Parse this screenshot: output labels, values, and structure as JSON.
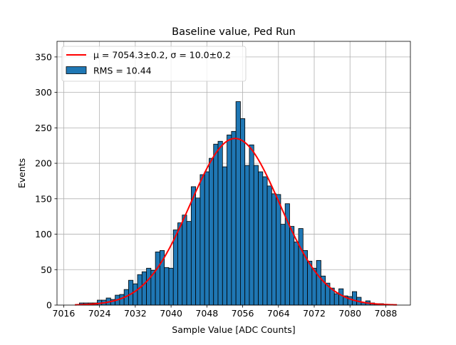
{
  "chart_data": {
    "type": "bar",
    "title": "Baseline value, Ped Run",
    "xlabel": "Sample Value [ADC Counts]",
    "ylabel": "Events",
    "xlim": [
      7014.5,
      7093.5
    ],
    "ylim": [
      0,
      372
    ],
    "xticks": [
      7016,
      7024,
      7032,
      7040,
      7048,
      7056,
      7064,
      7072,
      7080,
      7088
    ],
    "yticks": [
      0,
      50,
      100,
      150,
      200,
      250,
      300,
      350
    ],
    "grid": true,
    "legend_position": "top-left",
    "bin_width": 1,
    "histogram": {
      "name": "RMS = 10.44",
      "color": "#1f77b4",
      "edge_color": "#000000",
      "bins": [
        {
          "x": 7020,
          "y": 3
        },
        {
          "x": 7021,
          "y": 3
        },
        {
          "x": 7022,
          "y": 3
        },
        {
          "x": 7023,
          "y": 3
        },
        {
          "x": 7024,
          "y": 7
        },
        {
          "x": 7025,
          "y": 7
        },
        {
          "x": 7026,
          "y": 10
        },
        {
          "x": 7027,
          "y": 8
        },
        {
          "x": 7028,
          "y": 14
        },
        {
          "x": 7029,
          "y": 15
        },
        {
          "x": 7030,
          "y": 22
        },
        {
          "x": 7031,
          "y": 35
        },
        {
          "x": 7032,
          "y": 30
        },
        {
          "x": 7033,
          "y": 43
        },
        {
          "x": 7034,
          "y": 47
        },
        {
          "x": 7035,
          "y": 52
        },
        {
          "x": 7036,
          "y": 49
        },
        {
          "x": 7037,
          "y": 75
        },
        {
          "x": 7038,
          "y": 77
        },
        {
          "x": 7039,
          "y": 53
        },
        {
          "x": 7040,
          "y": 52
        },
        {
          "x": 7041,
          "y": 106
        },
        {
          "x": 7042,
          "y": 116
        },
        {
          "x": 7043,
          "y": 127
        },
        {
          "x": 7044,
          "y": 118
        },
        {
          "x": 7045,
          "y": 167
        },
        {
          "x": 7046,
          "y": 151
        },
        {
          "x": 7047,
          "y": 184
        },
        {
          "x": 7048,
          "y": 188
        },
        {
          "x": 7049,
          "y": 207
        },
        {
          "x": 7050,
          "y": 227
        },
        {
          "x": 7051,
          "y": 231
        },
        {
          "x": 7052,
          "y": 195
        },
        {
          "x": 7053,
          "y": 240
        },
        {
          "x": 7054,
          "y": 245
        },
        {
          "x": 7055,
          "y": 287
        },
        {
          "x": 7056,
          "y": 263
        },
        {
          "x": 7057,
          "y": 197
        },
        {
          "x": 7058,
          "y": 226
        },
        {
          "x": 7059,
          "y": 197
        },
        {
          "x": 7060,
          "y": 188
        },
        {
          "x": 7061,
          "y": 181
        },
        {
          "x": 7062,
          "y": 168
        },
        {
          "x": 7063,
          "y": 157
        },
        {
          "x": 7064,
          "y": 156
        },
        {
          "x": 7065,
          "y": 114
        },
        {
          "x": 7066,
          "y": 143
        },
        {
          "x": 7067,
          "y": 111
        },
        {
          "x": 7068,
          "y": 89
        },
        {
          "x": 7069,
          "y": 108
        },
        {
          "x": 7070,
          "y": 77
        },
        {
          "x": 7071,
          "y": 62
        },
        {
          "x": 7072,
          "y": 52
        },
        {
          "x": 7073,
          "y": 63
        },
        {
          "x": 7074,
          "y": 41
        },
        {
          "x": 7075,
          "y": 31
        },
        {
          "x": 7076,
          "y": 24
        },
        {
          "x": 7077,
          "y": 16
        },
        {
          "x": 7078,
          "y": 23
        },
        {
          "x": 7079,
          "y": 13
        },
        {
          "x": 7080,
          "y": 12
        },
        {
          "x": 7081,
          "y": 19
        },
        {
          "x": 7082,
          "y": 11
        },
        {
          "x": 7083,
          "y": 4
        },
        {
          "x": 7084,
          "y": 6
        },
        {
          "x": 7085,
          "y": 3
        },
        {
          "x": 7086,
          "y": 2
        },
        {
          "x": 7087,
          "y": 2
        },
        {
          "x": 7088,
          "y": 1
        },
        {
          "x": 7089,
          "y": 1
        }
      ]
    },
    "fit": {
      "label_mu": "μ = 7054.3±0.2",
      "label_sep": ", ",
      "label_sigma": "σ = 10.0±0.2",
      "color": "#ff0000",
      "mean": 7054.3,
      "sigma": 10.0,
      "amplitude": 235,
      "x_range": [
        7018.5,
        7090.5
      ]
    }
  }
}
